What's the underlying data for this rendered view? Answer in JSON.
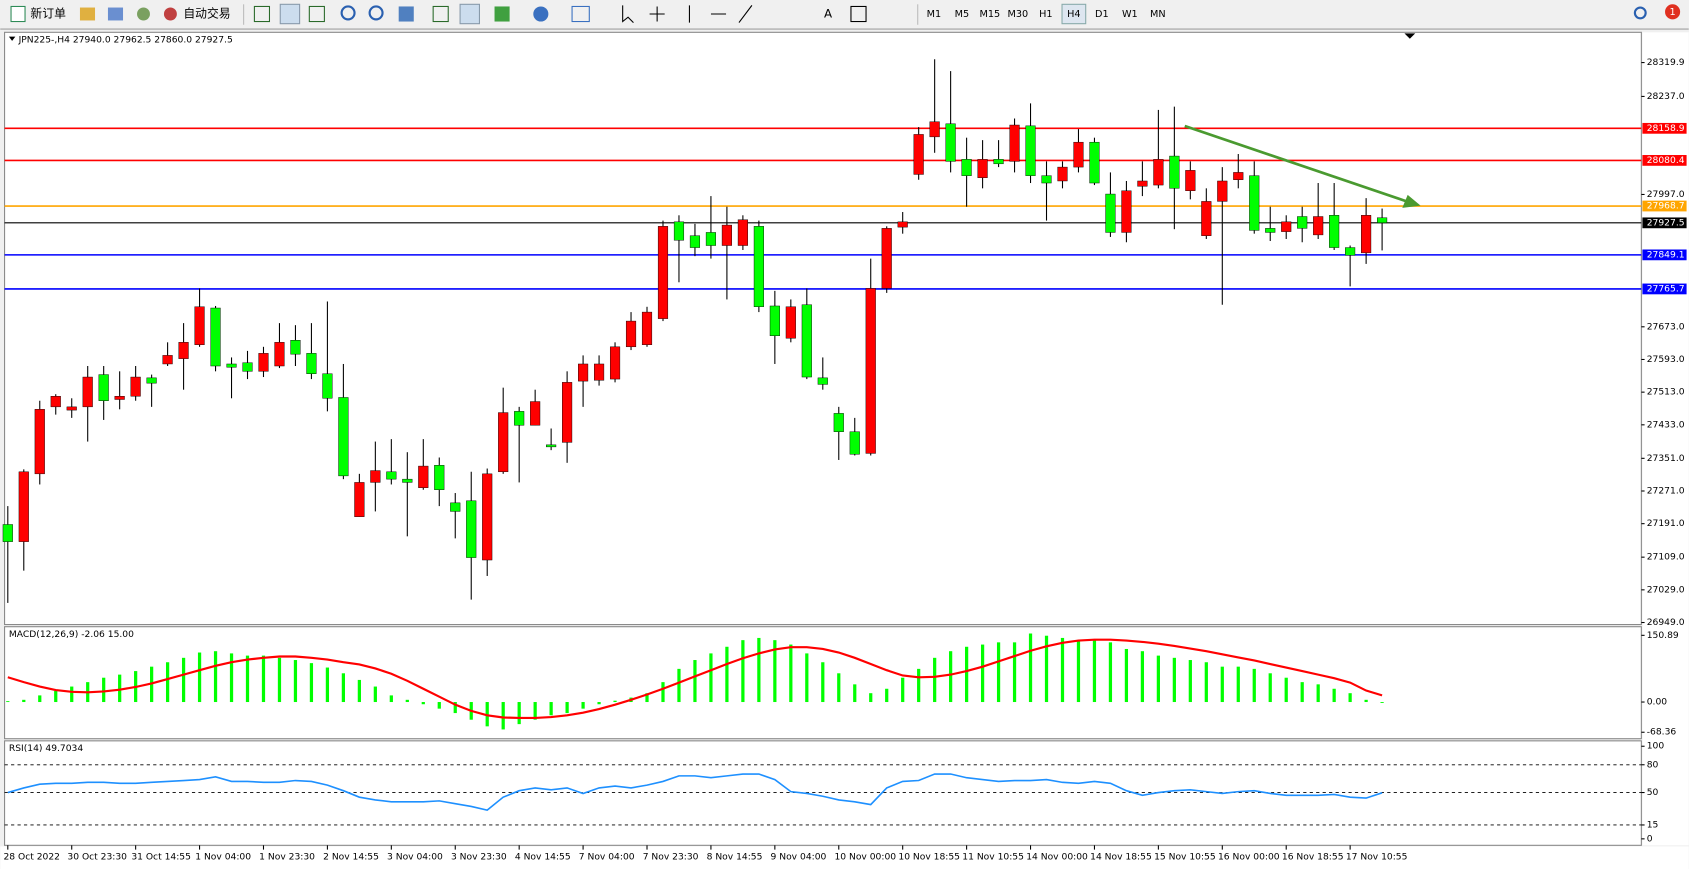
{
  "toolbar": {
    "new_order": "新订单",
    "auto_trading": "自动交易",
    "timeframes": [
      "M1",
      "M5",
      "M15",
      "M30",
      "H1",
      "H4",
      "D1",
      "W1",
      "MN"
    ],
    "active_timeframe": "H4",
    "notifications": "1"
  },
  "chart_data": [
    {
      "type": "candlestick",
      "title": "JPN225-,H4  27940.0 27962.5 27860.0 27927.5",
      "x": [
        "28 Oct 2022",
        null,
        null,
        null,
        "30 Oct 23:30",
        null,
        null,
        null,
        "31 Oct 14:55",
        null,
        null,
        null,
        "1 Nov 04:00",
        null,
        null,
        null,
        "1 Nov 23:30",
        null,
        null,
        null,
        "2 Nov 14:55",
        null,
        null,
        null,
        "3 Nov 04:00",
        null,
        null,
        null,
        "3 Nov 23:30",
        null,
        null,
        null,
        "4 Nov 14:55",
        null,
        null,
        null,
        "7 Nov 04:00",
        null,
        null,
        null,
        "7 Nov 23:30",
        null,
        null,
        null,
        "8 Nov 14:55",
        null,
        null,
        null,
        "9 Nov 04:00",
        null,
        null,
        null,
        "10 Nov 00:00",
        null,
        null,
        null,
        "10 Nov 18:55",
        null,
        null,
        null,
        "11 Nov 10:55",
        null,
        null,
        null,
        "14 Nov 00:00",
        null,
        null,
        null,
        "14 Nov 18:55",
        null,
        null,
        null,
        "15 Nov 10:55",
        null,
        null,
        null,
        "16 Nov 00:00",
        null,
        null,
        null,
        "16 Nov 18:55",
        null,
        null,
        null,
        "17 Nov 10:55",
        null,
        null
      ],
      "open": [
        27189,
        27147,
        27313,
        27477,
        27469,
        27477,
        27556,
        27495,
        27503,
        27548,
        27582,
        27595,
        27629,
        27719,
        27582,
        27585,
        27564,
        27577,
        27640,
        27608,
        27558,
        27500,
        27208,
        27292,
        27318,
        27300,
        27279,
        27334,
        27242,
        27247,
        27102,
        27318,
        27466,
        27432,
        27384,
        27390,
        27540,
        27542,
        27545,
        27624,
        27629,
        27693,
        27930,
        27896,
        27904,
        27872,
        27872,
        27919,
        27724,
        27645,
        27727,
        27548,
        27461,
        27416,
        27363,
        27767,
        27917,
        28046,
        28138,
        28170,
        28083,
        28038,
        28083,
        28078,
        28165,
        28043,
        28030,
        28064,
        28125,
        27998,
        27904,
        28017,
        28020,
        28091,
        28006,
        27896,
        27980,
        28033,
        28043,
        27914,
        27906,
        27943,
        27898,
        27946,
        27867,
        27854,
        27940.0
      ],
      "high": [
        27234,
        27324,
        27492,
        27508,
        27498,
        27577,
        27577,
        27564,
        27577,
        27556,
        27635,
        27682,
        27767,
        27724,
        27598,
        27614,
        27624,
        27682,
        27677,
        27682,
        27735,
        27582,
        27313,
        27392,
        27398,
        27366,
        27398,
        27353,
        27266,
        27318,
        27326,
        27524,
        27477,
        27519,
        27424,
        27564,
        27603,
        27603,
        27635,
        27709,
        27722,
        27933,
        27946,
        27925,
        27993,
        27967,
        27946,
        27933,
        27761,
        27740,
        27767,
        27598,
        27477,
        27450,
        27840,
        27919,
        27954,
        28162,
        28328,
        28299,
        28136,
        28130,
        28130,
        28183,
        28220,
        28078,
        28078,
        28157,
        28136,
        28051,
        28030,
        28078,
        28204,
        28212,
        28078,
        28012,
        28064,
        28096,
        28078,
        27967,
        27946,
        27967,
        28025,
        28025,
        27872,
        27988,
        27962.5
      ],
      "low": [
        26997,
        27076,
        27287,
        27458,
        27450,
        27392,
        27445,
        27471,
        27492,
        27477,
        27577,
        27519,
        27624,
        27564,
        27498,
        27545,
        27550,
        27572,
        27577,
        27545,
        27466,
        27300,
        27208,
        27221,
        27287,
        27160,
        27274,
        27234,
        27155,
        27005,
        27063,
        27313,
        27292,
        27432,
        27371,
        27340,
        27477,
        27529,
        27537,
        27616,
        27624,
        27687,
        27782,
        27846,
        27840,
        27740,
        27861,
        27709,
        27582,
        27635,
        27545,
        27519,
        27347,
        27358,
        27358,
        27756,
        27901,
        28033,
        28099,
        28051,
        27967,
        28012,
        28064,
        28051,
        28025,
        27933,
        28012,
        28051,
        28020,
        27893,
        27880,
        27993,
        28012,
        27912,
        27985,
        27888,
        27727,
        28012,
        27901,
        27883,
        27888,
        27880,
        27888,
        27861,
        27772,
        27827,
        27860.0
      ],
      "close": [
        27147,
        27318,
        27471,
        27503,
        27477,
        27550,
        27492,
        27503,
        27550,
        27535,
        27603,
        27635,
        27722,
        27577,
        27574,
        27564,
        27608,
        27635,
        27606,
        27558,
        27498,
        27308,
        27292,
        27321,
        27300,
        27292,
        27332,
        27274,
        27221,
        27108,
        27313,
        27463,
        27432,
        27490,
        27379,
        27537,
        27582,
        27582,
        27624,
        27687,
        27709,
        27919,
        27885,
        27867,
        27872,
        27922,
        27935,
        27722,
        27651,
        27722,
        27550,
        27532,
        27416,
        27361,
        27767,
        27914,
        27930,
        28144,
        28175,
        28078,
        28043,
        28083,
        28072,
        28167,
        28043,
        28025,
        28064,
        28125,
        28025,
        27904,
        28006,
        28030,
        28083,
        28012,
        28056,
        27980,
        28030,
        28051,
        27909,
        27904,
        27930,
        27914,
        27943,
        27867,
        27848,
        27946,
        27927.5
      ],
      "up_color": "#ff0000",
      "down_color": "#00ff00",
      "wick_color": "#000000",
      "ylim": [
        26944,
        28394
      ],
      "yticks": [
        28319.9,
        {
          "value": 28237.0,
          "label": "28237.0"
        },
        {
          "value": 27997.0,
          "label": "27997.0"
        },
        {
          "value": 27673.0,
          "label": "27673.0"
        },
        {
          "value": 27593.0,
          "label": "27593.0"
        },
        {
          "value": 27513.0,
          "label": "27513.0"
        },
        {
          "value": 27433.0,
          "label": "27433.0"
        },
        {
          "value": 27351.0,
          "label": "27351.0"
        },
        {
          "value": 27271.0,
          "label": "27271.0"
        },
        {
          "value": 27191.0,
          "label": "27191.0"
        },
        {
          "value": 27109.0,
          "label": "27109.0"
        },
        {
          "value": 27029.0,
          "label": "27029.0"
        },
        {
          "value": 26949.0,
          "label": "26949.0"
        }
      ],
      "levels": [
        {
          "value": 28158.9,
          "color": "#ff0000"
        },
        {
          "value": 28080.4,
          "color": "#ff0000"
        },
        {
          "value": 27968.7,
          "color": "#ffa500"
        },
        {
          "value": 27927.5,
          "color": "#000000"
        },
        {
          "value": 27849.1,
          "color": "#0000ff"
        },
        {
          "value": 27765.7,
          "color": "#0000ff"
        }
      ]
    },
    {
      "type": "macd",
      "title": "MACD(12,26,9) -2.06 15.00",
      "values": [
        2,
        5,
        15,
        25,
        35,
        45,
        55,
        62,
        70,
        80,
        90,
        100,
        112,
        115,
        110,
        105,
        105,
        100,
        95,
        88,
        78,
        65,
        50,
        35,
        15,
        5,
        -5,
        -15,
        -25,
        -40,
        -55,
        -62,
        -50,
        -40,
        -30,
        -25,
        -15,
        -5,
        3,
        10,
        20,
        45,
        75,
        95,
        110,
        125,
        140,
        145,
        140,
        130,
        110,
        90,
        65,
        40,
        20,
        30,
        55,
        75,
        100,
        115,
        125,
        130,
        135,
        135,
        155,
        150,
        145,
        140,
        140,
        135,
        120,
        115,
        105,
        100,
        95,
        90,
        80,
        80,
        75,
        65,
        55,
        45,
        40,
        30,
        20,
        5,
        -2.06
      ],
      "signal": [
        56,
        45,
        35,
        27,
        23,
        22,
        24,
        28,
        34,
        42,
        52,
        62,
        72,
        82,
        90,
        96,
        100,
        103,
        103,
        100,
        96,
        90,
        85,
        76,
        64,
        48,
        30,
        12,
        -6,
        -20,
        -30,
        -35,
        -36,
        -36,
        -34,
        -30,
        -24,
        -16,
        -6,
        5,
        17,
        30,
        44,
        58,
        72,
        86,
        99,
        110,
        119,
        124,
        124,
        120,
        112,
        100,
        86,
        72,
        60,
        56,
        57,
        62,
        70,
        80,
        92,
        104,
        116,
        126,
        134,
        139,
        141,
        141,
        139,
        136,
        132,
        127,
        121,
        115,
        108,
        101,
        94,
        86,
        78,
        70,
        62,
        54,
        44,
        26,
        15.0
      ],
      "color": "#00ff00",
      "signal_color": "#ff0000",
      "ylim": [
        -68.36,
        150.89
      ],
      "yticks": [
        150.89,
        {
          "value": 0,
          "label": "0.00"
        },
        -68.36
      ]
    },
    {
      "type": "line",
      "title": "RSI(14) 49.7034",
      "values": [
        50,
        55,
        59,
        60,
        60,
        61,
        61,
        60,
        60,
        61,
        62,
        63,
        64,
        67,
        62,
        62,
        61,
        61,
        63,
        62,
        58,
        52,
        45,
        42,
        40,
        40,
        40,
        41,
        38,
        35,
        31,
        45,
        52,
        55,
        53,
        55,
        49,
        55,
        57,
        55,
        58,
        62,
        68,
        68,
        66,
        68,
        70,
        70,
        64,
        51,
        49,
        46,
        42,
        40,
        37,
        55,
        62,
        63,
        70,
        70,
        66,
        64,
        62,
        63,
        63,
        64,
        61,
        60,
        62,
        60,
        52,
        47,
        50,
        52,
        53,
        51,
        49,
        51,
        52,
        49,
        47,
        47,
        47,
        48,
        45,
        44,
        49.7034
      ],
      "color": "#1e90ff",
      "ylim": [
        0,
        100
      ],
      "yticks": [
        100,
        80,
        50,
        15,
        0
      ],
      "levels": [
        80,
        50,
        15
      ]
    }
  ]
}
